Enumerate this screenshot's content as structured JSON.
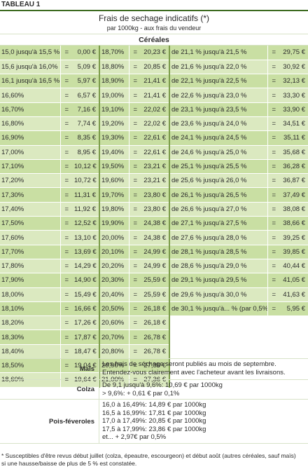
{
  "header": {
    "tableau": "TABLEAU 1",
    "title": "Frais de sechage indicatifs (*)",
    "subtitle": "par 1000kg - aux frais du vendeur",
    "section": "Céréales"
  },
  "rows": [
    [
      "15,0 jusqu'à 15,5 %",
      "=",
      "0,00 €",
      "18,70%",
      "=",
      "20,23 €",
      "de 21,1 % jusqu'à 21,5 %",
      "=",
      "29,75 €"
    ],
    [
      "15,6 jusqu'à 16,0%",
      "=",
      "5,09 €",
      "18,80%",
      "=",
      "20,85 €",
      "de 21,6 % jusqu'à 22,0 %",
      "=",
      "30,92 €"
    ],
    [
      "16,1 jusqu'à 16,5 %",
      "=",
      "5,97 €",
      "18,90%",
      "=",
      "21,41 €",
      "de 22,1 % jusqu'à 22,5 %",
      "=",
      "32,13 €"
    ],
    [
      "16,60%",
      "=",
      "6,57 €",
      "19,00%",
      "=",
      "21,41 €",
      "de 22,6 % jusqu'à 23,0 %",
      "=",
      "33,30 €"
    ],
    [
      "16,70%",
      "=",
      "7,16 €",
      "19,10%",
      "=",
      "22,02 €",
      "de 23,1 % jusqu'à 23,5 %",
      "=",
      "33,90 €"
    ],
    [
      "16,80%",
      "=",
      "7,74 €",
      "19,20%",
      "=",
      "22,02 €",
      "de 23,6 % jusqu'à 24,0 %",
      "=",
      "34,51 €"
    ],
    [
      "16,90%",
      "=",
      "8,35 €",
      "19,30%",
      "=",
      "22,61 €",
      "de 24,1 % jusqu'à 24,5 %",
      "=",
      "35,11 €"
    ],
    [
      "17,00%",
      "=",
      "8,95 €",
      "19,40%",
      "=",
      "22,61 €",
      "de 24,6 % jusqu'à 25,0 %",
      "=",
      "35,68 €"
    ],
    [
      "17,10%",
      "=",
      "10,12 €",
      "19,50%",
      "=",
      "23,21 €",
      "de 25,1 % jusqu'à 25,5 %",
      "=",
      "36,28 €"
    ],
    [
      "17,20%",
      "=",
      "10,72 €",
      "19,60%",
      "=",
      "23,21 €",
      "de 25,6 % jusqu'à 26,0 %",
      "=",
      "36,87 €"
    ],
    [
      "17,30%",
      "=",
      "11,31 €",
      "19,70%",
      "=",
      "23,80 €",
      "de 26,1 % jusqu'à 26,5 %",
      "=",
      "37,49 €"
    ],
    [
      "17,40%",
      "=",
      "11,92 €",
      "19,80%",
      "=",
      "23,80 €",
      "de 26,6 % jusqu'à 27,0 %",
      "=",
      "38,08 €"
    ],
    [
      "17,50%",
      "=",
      "12,52 €",
      "19,90%",
      "=",
      "24,38 €",
      "de 27,1 % jusqu'à 27,5 %",
      "=",
      "38,66 €"
    ],
    [
      "17,60%",
      "=",
      "13,10 €",
      "20,00%",
      "=",
      "24,38 €",
      "de 27,6 % jusqu'à 28,0 %",
      "=",
      "39,25 €"
    ],
    [
      "17,70%",
      "=",
      "13,69 €",
      "20,10%",
      "=",
      "24,99 €",
      "de 28,1 % jusqu'à 28,5 %",
      "=",
      "39,85 €"
    ],
    [
      "17,80%",
      "=",
      "14,29 €",
      "20,20%",
      "=",
      "24,99 €",
      "de 28,6 % jusqu'à 29,0 %",
      "=",
      "40,44 €"
    ],
    [
      "17,90%",
      "=",
      "14,90 €",
      "20,30%",
      "=",
      "25,59 €",
      "de 29,1 % jusqu'à 29,5 %",
      "=",
      "41,05 €"
    ],
    [
      "18,00%",
      "=",
      "15,49 €",
      "20,40%",
      "=",
      "25,59 €",
      "de 29,6 % jusqu'à 30,0 %",
      "=",
      "41,63 €"
    ],
    [
      "18,10%",
      "=",
      "16,66 €",
      "20,50%",
      "=",
      "26,18 €",
      "de 30,1 % jusqu'à... % (par 0,5%)",
      "=",
      "5,95 €"
    ],
    [
      "18,20%",
      "=",
      "17,26 €",
      "20,60%",
      "=",
      "26,18 €",
      "",
      "",
      ""
    ],
    [
      "18,30%",
      "=",
      "17,87 €",
      "20,70%",
      "=",
      "26,78 €",
      "",
      "",
      ""
    ],
    [
      "18,40%",
      "=",
      "18,47 €",
      "20,80%",
      "=",
      "26,78 €",
      "",
      "",
      ""
    ],
    [
      "18,50%",
      "=",
      "19,04 €",
      "20,90%",
      "=",
      "27,36 €",
      "",
      "",
      ""
    ],
    [
      "18,60%",
      "=",
      "19,64 €",
      "21,00%",
      "=",
      "27,36 €",
      "",
      "",
      ""
    ]
  ],
  "lower": {
    "mais_label": "Maïs",
    "mais_l1": "Les frais de séchage seront publiés au mois de septembre.",
    "mais_l2": "Entendez-vous clairement avec l'acheteur avant les livraisons.",
    "colza_label": "Colza",
    "colza_l1": "De 9,1 jusqu'à 9,6%: 10,69 € par 1000kg",
    "colza_l2": "> 9,6%: + 0,61 € par 0,1%",
    "pois_label": "Pois-féveroles",
    "pois_l1": "16,0 à 16,49%: 14,89 € par 1000kg",
    "pois_l2": "16,5 à 16,99%: 17,81 € par 1000kg",
    "pois_l3": "17,0 à 17,49%: 20,85 € par 1000kg",
    "pois_l4": "17,5 à 17,99%: 23,86 € par 1000kg",
    "pois_l5": "et... + 2,97€ par 0,5%"
  },
  "footnote": {
    "l1": "* Susceptibles d'être revus début juillet (colza, épeautre, escourgeon) et début août (autres céréales, sauf maïs)",
    "l2": "si une hausse/baisse de plus de 5 % est constatée."
  },
  "colors": {
    "green_dark": "#3c6a1f",
    "green_mid": "#c9dfa3",
    "green_light": "#dbe9c0"
  }
}
